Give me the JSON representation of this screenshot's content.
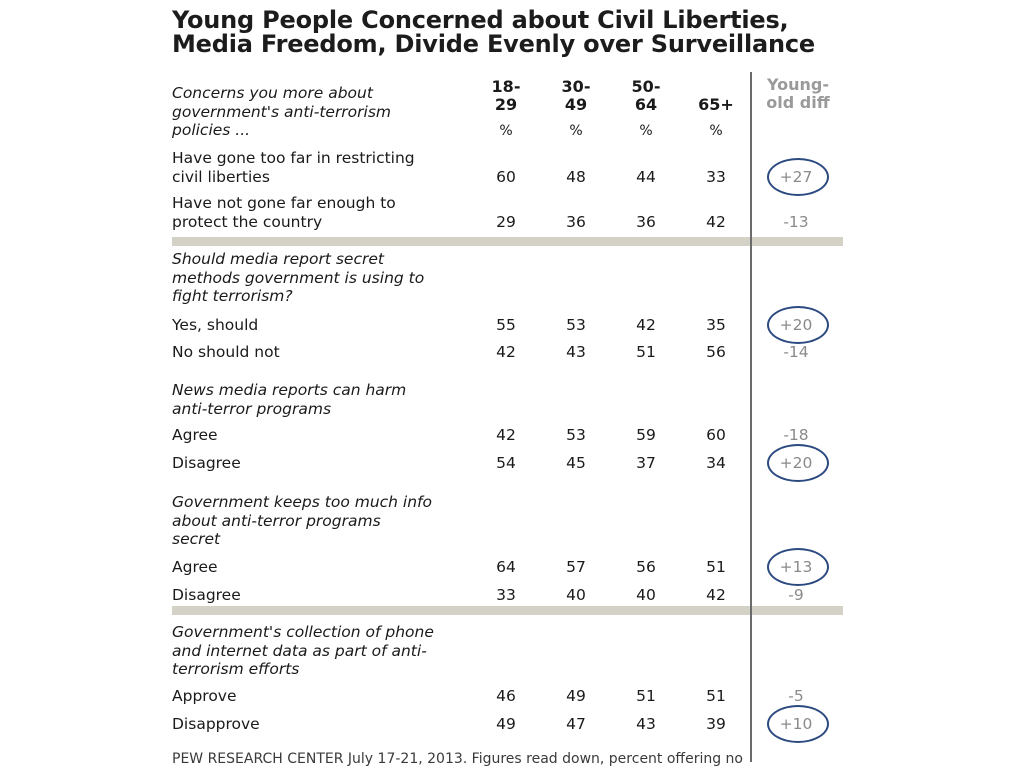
{
  "chart_data": {
    "type": "table",
    "title_line1": "Young People Concerned about Civil Liberties,",
    "title_line2": "Media Freedom, Divide Evenly over Surveillance",
    "columns": [
      {
        "line1": "18-",
        "line2": "29",
        "unit": "%"
      },
      {
        "line1": "30-",
        "line2": "49",
        "unit": "%"
      },
      {
        "line1": "50-",
        "line2": "64",
        "unit": "%"
      },
      {
        "line1": "",
        "line2": "65+",
        "unit": "%"
      }
    ],
    "diff_header": {
      "line1": "Young-",
      "line2": "old diff"
    },
    "questions": [
      {
        "lines": [
          "Concerns you more about",
          "government's anti-terrorism",
          "policies ..."
        ],
        "rows": [
          {
            "label_lines": [
              "Have gone too far in restricting",
              "civil liberties"
            ],
            "values": [
              60,
              48,
              44,
              33
            ],
            "diff": "+27",
            "circled": true
          },
          {
            "label_lines": [
              "Have not gone far enough to",
              "protect the country"
            ],
            "values": [
              29,
              36,
              36,
              42
            ],
            "diff": "-13",
            "circled": false
          }
        ]
      },
      {
        "lines": [
          "Should media report secret",
          "methods government is using to",
          "fight terrorism?"
        ],
        "rows": [
          {
            "label_lines": [
              "Yes, should"
            ],
            "values": [
              55,
              53,
              42,
              35
            ],
            "diff": "+20",
            "circled": true
          },
          {
            "label_lines": [
              "No should not"
            ],
            "values": [
              42,
              43,
              51,
              56
            ],
            "diff": "-14",
            "circled": false
          }
        ]
      },
      {
        "lines": [
          "News media reports can harm",
          "anti-terror programs"
        ],
        "rows": [
          {
            "label_lines": [
              "Agree"
            ],
            "values": [
              42,
              53,
              59,
              60
            ],
            "diff": "-18",
            "circled": false
          },
          {
            "label_lines": [
              "Disagree"
            ],
            "values": [
              54,
              45,
              37,
              34
            ],
            "diff": "+20",
            "circled": true
          }
        ]
      },
      {
        "lines": [
          "Government keeps too much info",
          "about anti-terror programs",
          "secret"
        ],
        "rows": [
          {
            "label_lines": [
              "Agree"
            ],
            "values": [
              64,
              57,
              56,
              51
            ],
            "diff": "+13",
            "circled": true
          },
          {
            "label_lines": [
              "Disagree"
            ],
            "values": [
              33,
              40,
              40,
              42
            ],
            "diff": "-9",
            "circled": false
          }
        ]
      },
      {
        "lines": [
          "Government's collection of phone",
          "and internet data as part of anti-",
          "terrorism efforts"
        ],
        "rows": [
          {
            "label_lines": [
              "Approve"
            ],
            "values": [
              46,
              49,
              51,
              51
            ],
            "diff": "-5",
            "circled": false
          },
          {
            "label_lines": [
              "Disapprove"
            ],
            "values": [
              49,
              47,
              43,
              39
            ],
            "diff": "+10",
            "circled": true
          }
        ]
      }
    ],
    "source": "PEW RESEARCH  CENTER July 17-21, 2013. Figures read down, percent offering no"
  },
  "colors": {
    "circle": "#2c4a80",
    "band": "#d4d2c6",
    "diff_text": "#8a8a8a",
    "rule": "#6b6b6b"
  }
}
